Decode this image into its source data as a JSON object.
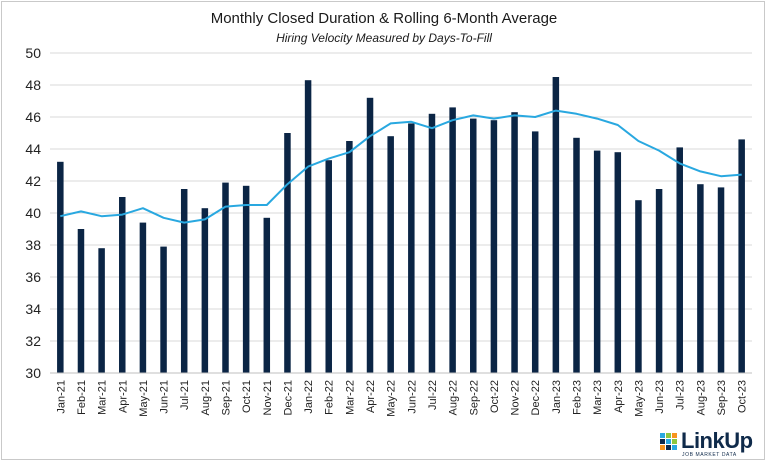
{
  "chart_data": {
    "type": "bar",
    "title": "Monthly Closed Duration & Rolling 6-Month Average",
    "subtitle": "Hiring Velocity Measured by Days-To-Fill",
    "categories": [
      "Jan-21",
      "Feb-21",
      "Mar-21",
      "Apr-21",
      "May-21",
      "Jun-21",
      "Jul-21",
      "Aug-21",
      "Sep-21",
      "Oct-21",
      "Nov-21",
      "Dec-21",
      "Jan-22",
      "Feb-22",
      "Mar-22",
      "Apr-22",
      "May-22",
      "Jun-22",
      "Jul-22",
      "Aug-22",
      "Sep-22",
      "Oct-22",
      "Nov-22",
      "Dec-22",
      "Jan-23",
      "Feb-23",
      "Mar-23",
      "Apr-23",
      "May-23",
      "Jun-23",
      "Jul-23",
      "Aug-23",
      "Sep-23",
      "Oct-23"
    ],
    "series": [
      {
        "type": "bar",
        "color": "#0b2545",
        "values": [
          43.2,
          39.0,
          37.8,
          41.0,
          39.4,
          37.9,
          41.5,
          40.3,
          41.9,
          41.7,
          39.7,
          45.0,
          48.3,
          43.3,
          44.5,
          47.2,
          44.8,
          45.6,
          46.2,
          46.6,
          45.9,
          45.8,
          46.3,
          45.1,
          48.5,
          44.7,
          43.9,
          43.8,
          40.8,
          41.5,
          44.1,
          41.8,
          41.6,
          44.6
        ]
      },
      {
        "type": "line",
        "color": "#29a8e0",
        "values": [
          39.8,
          40.1,
          39.8,
          39.9,
          40.3,
          39.7,
          39.4,
          39.6,
          40.4,
          40.5,
          40.5,
          41.8,
          42.9,
          43.4,
          43.8,
          44.8,
          45.6,
          45.7,
          45.3,
          45.8,
          46.1,
          45.9,
          46.1,
          46.0,
          46.4,
          46.2,
          45.9,
          45.5,
          44.5,
          43.9,
          43.1,
          42.6,
          42.3,
          42.4
        ]
      }
    ],
    "ylim": [
      30,
      50
    ],
    "yticks": [
      30,
      32,
      34,
      36,
      38,
      40,
      42,
      44,
      46,
      48,
      50
    ],
    "grid": true,
    "legend": "none"
  },
  "logo": {
    "name": "LinkUp",
    "tagline": "JOB MARKET DATA"
  }
}
